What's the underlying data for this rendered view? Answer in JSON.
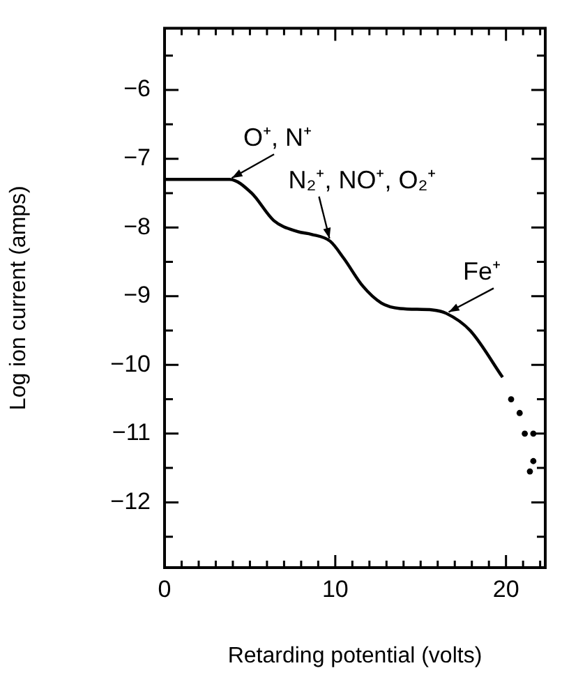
{
  "chart_data": {
    "type": "line",
    "xlabel": "Retarding potential (volts)",
    "ylabel": "Log ion current (amps)",
    "xlim": [
      0,
      22.3
    ],
    "ylim": [
      -12.95,
      -5.1
    ],
    "xticks": [
      0,
      {
        "value": 1,
        "label": null
      },
      {
        "value": 2,
        "label": null
      },
      {
        "value": 3,
        "label": null
      },
      {
        "value": 4,
        "label": null
      },
      {
        "value": 5,
        "label": null
      },
      {
        "value": 6,
        "label": null
      },
      {
        "value": 7,
        "label": null
      },
      {
        "value": 8,
        "label": null
      },
      {
        "value": 9,
        "label": null
      },
      10,
      {
        "value": 11,
        "label": null
      },
      {
        "value": 12,
        "label": null
      },
      {
        "value": 13,
        "label": null
      },
      {
        "value": 14,
        "label": null
      },
      {
        "value": 15,
        "label": null
      },
      {
        "value": 16,
        "label": null
      },
      {
        "value": 17,
        "label": null
      },
      {
        "value": 18,
        "label": null
      },
      {
        "value": 19,
        "label": null
      },
      20,
      {
        "value": 21,
        "label": null
      },
      {
        "value": 22,
        "label": null
      }
    ],
    "yticks": [
      {
        "value": -12.5,
        "label": null
      },
      -12,
      {
        "value": -11.5,
        "label": null
      },
      -11,
      {
        "value": -10.5,
        "label": null
      },
      -10,
      {
        "value": -9.5,
        "label": null
      },
      -9,
      {
        "value": -8.5,
        "label": null
      },
      -8,
      {
        "value": -7.5,
        "label": null
      },
      -7,
      {
        "value": -6.5,
        "label": null
      },
      -6,
      {
        "value": -5.5,
        "label": null
      }
    ],
    "grid": false,
    "legend": false,
    "line_style": "solid",
    "series": [
      {
        "type": "line",
        "color": "#000000",
        "marker": "none",
        "x": [
          0,
          1,
          2,
          3,
          3.8,
          5.1,
          6.4,
          7.8,
          8.6,
          9.7,
          10.5,
          11.6,
          12.7,
          13.8,
          15.7,
          16.5,
          17.9,
          19.8
        ],
        "values": [
          -7.3,
          -7.3,
          -7.3,
          -7.3,
          -7.3,
          -7.5,
          -7.9,
          -8.06,
          -8.1,
          -8.2,
          -8.45,
          -8.85,
          -9.1,
          -9.18,
          -9.2,
          -9.25,
          -9.5,
          -10.18
        ]
      },
      {
        "type": "scatter",
        "color": "#000000",
        "marker": "circle",
        "x": [
          20.3,
          20.8,
          21.1,
          21.6,
          21.6,
          21.4
        ],
        "values": [
          -10.5,
          -10.7,
          -11.0,
          -11.0,
          -11.4,
          -11.55
        ]
      }
    ],
    "annotations": [
      {
        "text": "O⁺, N⁺",
        "x": 3.8,
        "y": -7.3
      },
      {
        "text": "N₂⁺, NO⁺, O₂⁺",
        "x": 9.7,
        "y": -8.2
      },
      {
        "text": "Fe⁺",
        "x": 16.5,
        "y": -9.25
      }
    ]
  }
}
